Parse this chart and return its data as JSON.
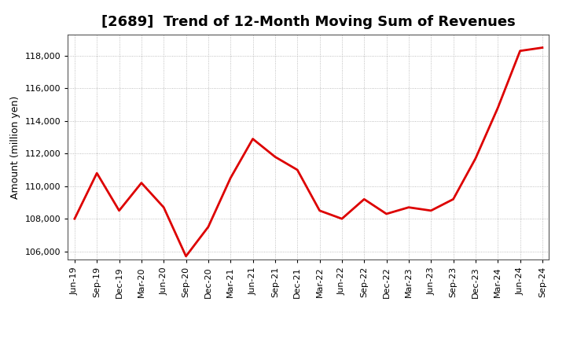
{
  "title": "[2689]  Trend of 12-Month Moving Sum of Revenues",
  "ylabel": "Amount (million yen)",
  "line_color": "#dd0000",
  "line_width": 2.0,
  "background_color": "#ffffff",
  "plot_bg_color": "#ffffff",
  "grid_color": "#999999",
  "x_labels": [
    "Jun-19",
    "Sep-19",
    "Dec-19",
    "Mar-20",
    "Jun-20",
    "Sep-20",
    "Dec-20",
    "Mar-21",
    "Jun-21",
    "Sep-21",
    "Dec-21",
    "Mar-22",
    "Jun-22",
    "Sep-22",
    "Dec-22",
    "Mar-23",
    "Jun-23",
    "Sep-23",
    "Dec-23",
    "Mar-24",
    "Jun-24",
    "Sep-24"
  ],
  "values": [
    108000,
    110800,
    108500,
    110200,
    108700,
    105700,
    107500,
    110500,
    112900,
    111800,
    111000,
    108500,
    108000,
    109200,
    108300,
    108700,
    108500,
    109200,
    111700,
    114800,
    118300,
    118500
  ],
  "ylim": [
    105500,
    119300
  ],
  "yticks": [
    106000,
    108000,
    110000,
    112000,
    114000,
    116000,
    118000
  ],
  "title_fontsize": 13,
  "ylabel_fontsize": 9,
  "tick_fontsize": 8
}
